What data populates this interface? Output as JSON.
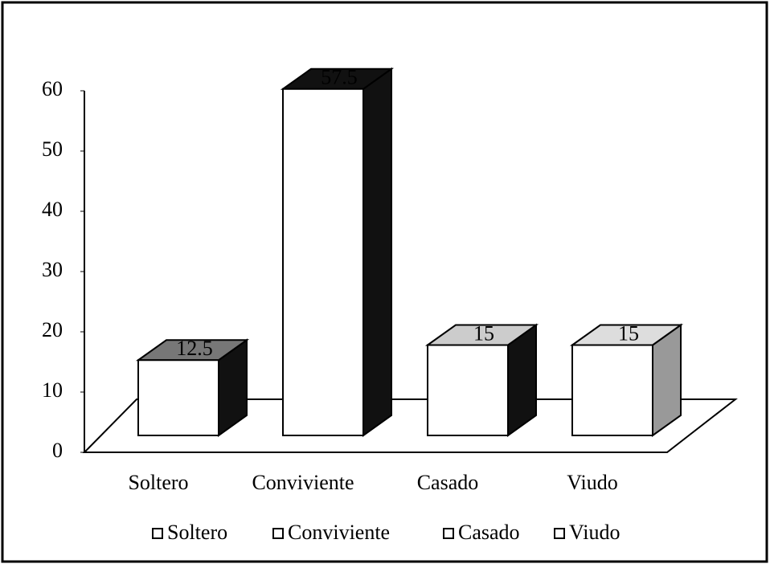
{
  "chart_data": {
    "type": "bar",
    "categories": [
      "Soltero",
      "Conviviente",
      "Casado",
      "Viudo"
    ],
    "values": [
      12.5,
      57.5,
      15,
      15
    ],
    "color": "#ffffff",
    "top_colors": [
      "#777777",
      "#111111",
      "#cccccc",
      "#dddddd"
    ],
    "side_colors": [
      "#111111",
      "#111111",
      "#111111",
      "#999999"
    ],
    "ylim": [
      0,
      60
    ],
    "yticks": [
      0,
      10,
      20,
      30,
      40,
      50,
      60
    ],
    "legend": "bottom"
  }
}
